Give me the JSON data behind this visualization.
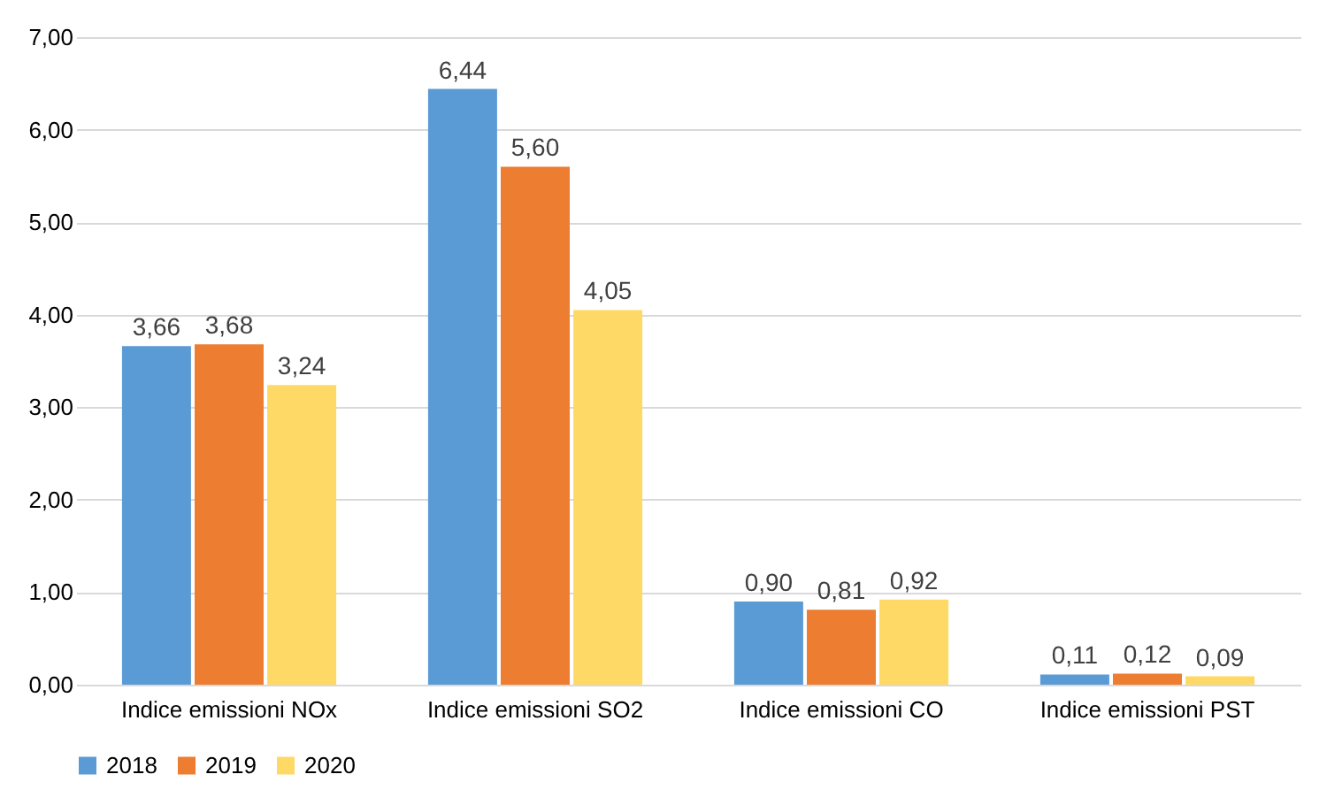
{
  "chart_data": {
    "type": "bar",
    "categories": [
      "Indice emissioni NOx",
      "Indice emissioni SO2",
      "Indice emissioni CO",
      "Indice emissioni PST"
    ],
    "series": [
      {
        "name": "2018",
        "color": "#5b9bd5",
        "values": [
          3.66,
          6.44,
          0.9,
          0.11
        ],
        "value_labels": [
          "3,66",
          "6,44",
          "0,90",
          "0,11"
        ]
      },
      {
        "name": "2019",
        "color": "#ed7d31",
        "values": [
          3.68,
          5.6,
          0.81,
          0.12
        ],
        "value_labels": [
          "3,68",
          "5,60",
          "0,81",
          "0,12"
        ]
      },
      {
        "name": "2020",
        "color": "#ffd966",
        "values": [
          3.24,
          4.05,
          0.92,
          0.09
        ],
        "value_labels": [
          "3,24",
          "4,05",
          "0,92",
          "0,09"
        ]
      }
    ],
    "ylim": [
      0,
      7
    ],
    "yticks": [
      {
        "value": 0,
        "label": "0,00"
      },
      {
        "value": 1,
        "label": "1,00"
      },
      {
        "value": 2,
        "label": "2,00"
      },
      {
        "value": 3,
        "label": "3,00"
      },
      {
        "value": 4,
        "label": "4,00"
      },
      {
        "value": 5,
        "label": "5,00"
      },
      {
        "value": 6,
        "label": "6,00"
      },
      {
        "value": 7,
        "label": "7,00"
      }
    ],
    "grid": "y",
    "legend": "bottom"
  }
}
